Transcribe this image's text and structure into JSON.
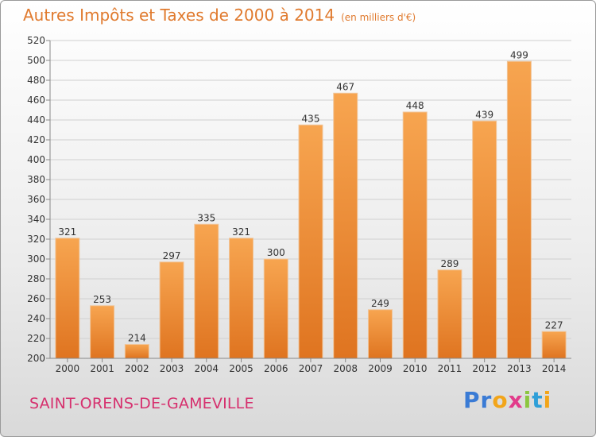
{
  "header": {
    "title": "Autres Impôts et Taxes de 2000 à 2014",
    "subtitle": "(en milliers d'€)"
  },
  "footer": {
    "town": "SAINT-ORENS-DE-GAMEVILLE",
    "logo_letters": [
      "P",
      "r",
      "o",
      "x",
      "i",
      "t",
      "i"
    ],
    "logo_colors": [
      "#3a7bd5",
      "#3a7bd5",
      "#f2a51a",
      "#e23c8b",
      "#8cc63f",
      "#2f9fd8",
      "#f2a51a"
    ]
  },
  "colors": {
    "accent": "#e07a2e",
    "town": "#d6306e",
    "bar_light": "#f7a550",
    "bar_dark": "#df7420"
  },
  "chart_data": {
    "type": "bar",
    "categories": [
      "2000",
      "2001",
      "2002",
      "2003",
      "2004",
      "2005",
      "2006",
      "2007",
      "2008",
      "2009",
      "2010",
      "2011",
      "2012",
      "2013",
      "2014"
    ],
    "values": [
      321,
      253,
      214,
      297,
      335,
      321,
      300,
      435,
      467,
      249,
      448,
      289,
      439,
      499,
      227
    ],
    "ylim": [
      200,
      520
    ],
    "ytick_step": 20,
    "grid": true,
    "data_labels": true
  }
}
